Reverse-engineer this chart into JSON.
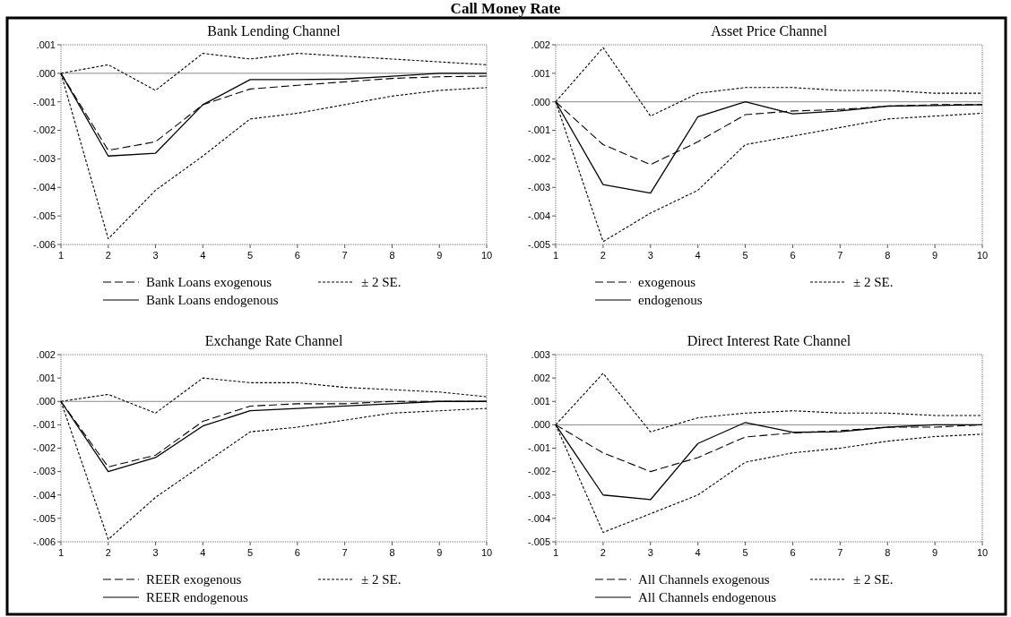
{
  "chart_data": [
    {
      "type": "line",
      "title": "Bank Lending Channel",
      "annotations": [
        "Call Money Rate"
      ],
      "x": [
        1,
        2,
        3,
        4,
        5,
        6,
        7,
        8,
        9,
        10
      ],
      "xlim": [
        1,
        10
      ],
      "xticks": [
        1,
        2,
        3,
        4,
        5,
        6,
        7,
        8,
        9,
        10
      ],
      "ylim": [
        -0.006,
        0.001
      ],
      "yticks": [
        {
          "value": -0.006,
          "label": "-.006"
        },
        {
          "value": -0.005,
          "label": "-.005"
        },
        {
          "value": -0.004,
          "label": "-.004"
        },
        {
          "value": -0.003,
          "label": "-.003"
        },
        {
          "value": -0.002,
          "label": "-.002"
        },
        {
          "value": -0.001,
          "label": "-.001"
        },
        {
          "value": 0,
          "label": ".000"
        },
        {
          "value": 0.001,
          "label": ".001"
        }
      ],
      "legend": "bottom",
      "ref_lines": [
        {
          "axis": "y",
          "value": 0,
          "color": "#888888"
        }
      ],
      "series": [
        {
          "name": "Bank Loans exogenous",
          "color": "#000000",
          "line_style": "dashed",
          "values": [
            0,
            -0.0027,
            -0.0024,
            -0.0011,
            -0.00055,
            -0.00042,
            -0.0003,
            -0.00018,
            -0.00012,
            -0.0001
          ]
        },
        {
          "name": "± 2 SE.",
          "color": "#000000",
          "line_style": "dotted",
          "values": [
            0,
            0.0003,
            -0.0006,
            0.0007,
            0.0005,
            0.0007,
            0.0006,
            0.0005,
            0.0004,
            0.0003
          ]
        },
        {
          "name": "Bank Loans endogenous",
          "color": "#000000",
          "line_style": "solid",
          "values": [
            0,
            -0.0029,
            -0.0028,
            -0.0011,
            -0.00022,
            -0.00022,
            -0.0002,
            -0.0001,
            0,
            0
          ]
        },
        {
          "color": "#000000",
          "line_style": "dotted",
          "values": [
            0,
            -0.0058,
            -0.0041,
            -0.0029,
            -0.0016,
            -0.0014,
            -0.0011,
            -0.0008,
            -0.0006,
            -0.0005
          ]
        }
      ]
    },
    {
      "type": "line",
      "title": "Asset Price Channel",
      "x": [
        1,
        2,
        3,
        4,
        5,
        6,
        7,
        8,
        9,
        10
      ],
      "xlim": [
        1,
        10
      ],
      "xticks": [
        1,
        2,
        3,
        4,
        5,
        6,
        7,
        8,
        9,
        10
      ],
      "ylim": [
        -0.005,
        0.002
      ],
      "yticks": [
        {
          "value": -0.005,
          "label": "-.005"
        },
        {
          "value": -0.004,
          "label": "-.004"
        },
        {
          "value": -0.003,
          "label": "-.003"
        },
        {
          "value": -0.002,
          "label": "-.002"
        },
        {
          "value": -0.001,
          "label": "-.001"
        },
        {
          "value": 0,
          "label": ".000"
        },
        {
          "value": 0.001,
          "label": ".001"
        },
        {
          "value": 0.002,
          "label": ".002"
        }
      ],
      "legend": "bottom",
      "ref_lines": [
        {
          "axis": "y",
          "value": 0,
          "color": "#888888"
        }
      ],
      "series": [
        {
          "name": "exogenous",
          "color": "#000000",
          "line_style": "dashed",
          "values": [
            0,
            -0.0015,
            -0.0022,
            -0.0014,
            -0.00045,
            -0.00032,
            -0.00027,
            -0.00015,
            -0.0001,
            -0.0001
          ]
        },
        {
          "name": "± 2 SE.",
          "color": "#000000",
          "line_style": "dotted",
          "values": [
            0,
            0.0019,
            -0.0005,
            0.0003,
            0.0005,
            0.0005,
            0.0004,
            0.0004,
            0.0003,
            0.0003
          ]
        },
        {
          "name": "endogenous",
          "color": "#000000",
          "line_style": "solid",
          "values": [
            0,
            -0.0029,
            -0.0032,
            -0.00052,
            0,
            -0.00042,
            -0.00032,
            -0.00015,
            -0.00013,
            -0.0001
          ]
        },
        {
          "color": "#000000",
          "line_style": "dotted",
          "values": [
            0,
            -0.0049,
            -0.0039,
            -0.0031,
            -0.0015,
            -0.0012,
            -0.0009,
            -0.0006,
            -0.0005,
            -0.0004
          ]
        }
      ]
    },
    {
      "type": "line",
      "title": "Exchange Rate Channel",
      "x": [
        1,
        2,
        3,
        4,
        5,
        6,
        7,
        8,
        9,
        10
      ],
      "xlim": [
        1,
        10
      ],
      "xticks": [
        1,
        2,
        3,
        4,
        5,
        6,
        7,
        8,
        9,
        10
      ],
      "ylim": [
        -0.006,
        0.002
      ],
      "yticks": [
        {
          "value": -0.006,
          "label": "-.006"
        },
        {
          "value": -0.005,
          "label": "-.005"
        },
        {
          "value": -0.004,
          "label": "-.004"
        },
        {
          "value": -0.003,
          "label": "-.003"
        },
        {
          "value": -0.002,
          "label": "-.002"
        },
        {
          "value": -0.001,
          "label": "-.001"
        },
        {
          "value": 0,
          "label": ".000"
        },
        {
          "value": 0.001,
          "label": ".001"
        },
        {
          "value": 0.002,
          "label": ".002"
        }
      ],
      "legend": "bottom",
      "ref_lines": [
        {
          "axis": "y",
          "value": 0,
          "color": "#888888"
        }
      ],
      "series": [
        {
          "name": "REER exogenous",
          "color": "#000000",
          "line_style": "dashed",
          "values": [
            0,
            -0.0028,
            -0.0023,
            -0.00085,
            -0.0002,
            -0.0001,
            -0.0001,
            0,
            0,
            0
          ]
        },
        {
          "name": "± 2 SE.",
          "color": "#000000",
          "line_style": "dotted",
          "values": [
            0,
            0.0003,
            -0.0005,
            0.001,
            0.0008,
            0.0008,
            0.0006,
            0.0005,
            0.0004,
            0.0002
          ]
        },
        {
          "name": "REER endogenous",
          "color": "#000000",
          "line_style": "solid",
          "values": [
            0,
            -0.003,
            -0.0024,
            -0.00105,
            -0.0004,
            -0.0003,
            -0.0002,
            -0.0001,
            0,
            0
          ]
        },
        {
          "color": "#000000",
          "line_style": "dotted",
          "values": [
            0,
            -0.0059,
            -0.0041,
            -0.0027,
            -0.0013,
            -0.0011,
            -0.0008,
            -0.0005,
            -0.0004,
            -0.0003
          ]
        }
      ]
    },
    {
      "type": "line",
      "title": "Direct Interest Rate Channel",
      "x": [
        1,
        2,
        3,
        4,
        5,
        6,
        7,
        8,
        9,
        10
      ],
      "xlim": [
        1,
        10
      ],
      "xticks": [
        1,
        2,
        3,
        4,
        5,
        6,
        7,
        8,
        9,
        10
      ],
      "ylim": [
        -0.005,
        0.003
      ],
      "yticks": [
        {
          "value": -0.005,
          "label": "-.005"
        },
        {
          "value": -0.004,
          "label": "-.004"
        },
        {
          "value": -0.003,
          "label": "-.003"
        },
        {
          "value": -0.002,
          "label": "-.002"
        },
        {
          "value": -0.001,
          "label": "-.001"
        },
        {
          "value": 0,
          "label": ".000"
        },
        {
          "value": 0.001,
          "label": ".001"
        },
        {
          "value": 0.002,
          "label": ".002"
        },
        {
          "value": 0.003,
          "label": ".003"
        }
      ],
      "legend": "bottom",
      "ref_lines": [
        {
          "axis": "y",
          "value": 0,
          "color": "#888888"
        }
      ],
      "series": [
        {
          "name": "All Channels exogenous",
          "color": "#000000",
          "line_style": "dashed",
          "values": [
            0,
            -0.0012,
            -0.002,
            -0.0014,
            -0.00052,
            -0.00035,
            -0.00025,
            -0.0001,
            -0.0001,
            0
          ]
        },
        {
          "name": "± 2 SE.",
          "color": "#000000",
          "line_style": "dotted",
          "values": [
            0,
            0.0022,
            -0.0003,
            0.0003,
            0.0005,
            0.0006,
            0.0005,
            0.0005,
            0.0004,
            0.0004
          ]
        },
        {
          "name": "All Channels endogenous",
          "color": "#000000",
          "line_style": "solid",
          "values": [
            0,
            -0.003,
            -0.0032,
            -0.0008,
            0.0001,
            -0.00032,
            -0.0003,
            -0.0001,
            0,
            0
          ]
        },
        {
          "color": "#000000",
          "line_style": "dotted",
          "values": [
            0,
            -0.0046,
            -0.0038,
            -0.003,
            -0.0016,
            -0.0012,
            -0.001,
            -0.0007,
            -0.0005,
            -0.0004
          ]
        }
      ]
    }
  ]
}
